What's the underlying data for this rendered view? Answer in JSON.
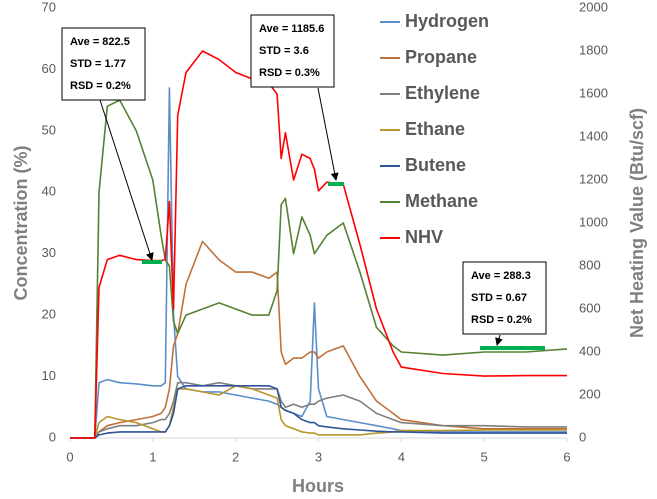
{
  "chart_data": {
    "type": "line",
    "x_label": "Hours",
    "y_label": "Concentration (%)",
    "y2_label": "Net Heating Value (Btu/scf)",
    "x": [
      0,
      0.3,
      0.35,
      0.45,
      0.6,
      0.8,
      1.0,
      1.1,
      1.15,
      1.2,
      1.25,
      1.3,
      1.4,
      1.6,
      1.8,
      2.0,
      2.2,
      2.4,
      2.5,
      2.55,
      2.6,
      2.7,
      2.8,
      2.9,
      2.95,
      3.0,
      3.1,
      3.3,
      3.5,
      3.7,
      3.9,
      4.0,
      4.5,
      5.0,
      5.5,
      6.0
    ],
    "series": [
      {
        "name": "Hydrogen",
        "color": "#5b8ec9",
        "values": [
          0,
          0,
          9,
          9.5,
          9,
          8.8,
          8.5,
          8.5,
          9,
          57,
          20,
          10,
          8,
          7.5,
          7.5,
          7,
          6.5,
          6,
          5.5,
          5,
          4.5,
          4,
          3.5,
          6,
          22,
          8,
          3.5,
          3,
          2.5,
          2,
          1.5,
          1.2,
          1,
          1,
          1,
          1
        ]
      },
      {
        "name": "Propane",
        "color": "#c0703a",
        "values": [
          0,
          0,
          1,
          2,
          2.5,
          3,
          3.5,
          4,
          5,
          8,
          15,
          17,
          25,
          32,
          29,
          27,
          27,
          26,
          27,
          14,
          12,
          13,
          13,
          14,
          14,
          13,
          14,
          15,
          10,
          6,
          4,
          3,
          2,
          1.5,
          1.5,
          1.5
        ]
      },
      {
        "name": "Ethylene",
        "color": "#7f7f7f",
        "values": [
          0,
          0,
          1,
          1.5,
          2,
          2,
          2.5,
          3,
          3,
          4,
          6,
          9,
          9,
          8.5,
          9,
          8.5,
          8,
          8,
          8,
          6,
          5,
          5.5,
          5,
          5.5,
          5.5,
          6,
          6.5,
          7,
          6,
          4,
          3,
          2.5,
          2,
          2,
          1.8,
          1.8
        ]
      },
      {
        "name": "Ethane",
        "color": "#b8952a",
        "values": [
          0,
          0,
          2.5,
          3.5,
          3,
          2.5,
          1.5,
          1,
          1,
          2,
          5,
          8,
          8,
          7.5,
          7,
          8.5,
          8,
          7,
          6.5,
          3,
          2,
          1.5,
          1,
          0.8,
          0.8,
          0.5,
          0.5,
          0.5,
          0.5,
          0.8,
          1,
          1.2,
          1.2,
          1.3,
          1.3,
          1.3
        ]
      },
      {
        "name": "Butene",
        "color": "#2f5597",
        "values": [
          0,
          0,
          0.5,
          0.8,
          1,
          1,
          1,
          1,
          1,
          2,
          4,
          8,
          8.5,
          8.5,
          8.5,
          8.5,
          8.5,
          8.5,
          8,
          5,
          4.5,
          4,
          3,
          2.5,
          2.5,
          2,
          1.8,
          1.5,
          1.3,
          1.1,
          1,
          1,
          0.8,
          0.8,
          0.8,
          0.8
        ]
      },
      {
        "name": "Methane",
        "color": "#548235",
        "values": [
          0,
          0,
          40,
          54,
          55,
          50,
          42,
          33,
          29,
          28,
          19,
          17,
          20,
          21,
          22,
          21,
          20,
          20,
          24,
          38,
          39,
          30,
          36,
          33,
          30,
          31,
          33,
          35,
          27,
          18,
          15,
          14,
          13.5,
          14,
          14,
          14.5
        ]
      },
      {
        "name": "NHV",
        "color": "#ff0000",
        "axis": "y2",
        "values": [
          0,
          0,
          700,
          830,
          850,
          830,
          825,
          825,
          830,
          1100,
          600,
          1500,
          1700,
          1800,
          1760,
          1700,
          1670,
          1650,
          1600,
          1300,
          1420,
          1200,
          1320,
          1300,
          1250,
          1150,
          1190,
          1180,
          900,
          600,
          400,
          330,
          300,
          288,
          290,
          290
        ]
      }
    ],
    "xlim": [
      0,
      6
    ],
    "xticks": [
      0,
      1,
      2,
      3,
      4,
      5,
      6
    ],
    "ylim": [
      0,
      70
    ],
    "yticks": [
      0,
      10,
      20,
      30,
      40,
      50,
      60,
      70
    ],
    "y2lim": [
      0,
      2000
    ],
    "y2ticks": [
      0,
      200,
      400,
      600,
      800,
      1000,
      1200,
      1400,
      1600,
      1800,
      2000
    ],
    "annotations": [
      [
        "Ave = 822.5",
        "STD = 1.77",
        "RSD = 0.2%"
      ],
      [
        "Ave = 1185.6",
        "STD = 3.6",
        "RSD = 0.3%"
      ],
      [
        "Ave = 288.3",
        "STD = 0.67",
        "RSD = 0.2%"
      ]
    ]
  }
}
